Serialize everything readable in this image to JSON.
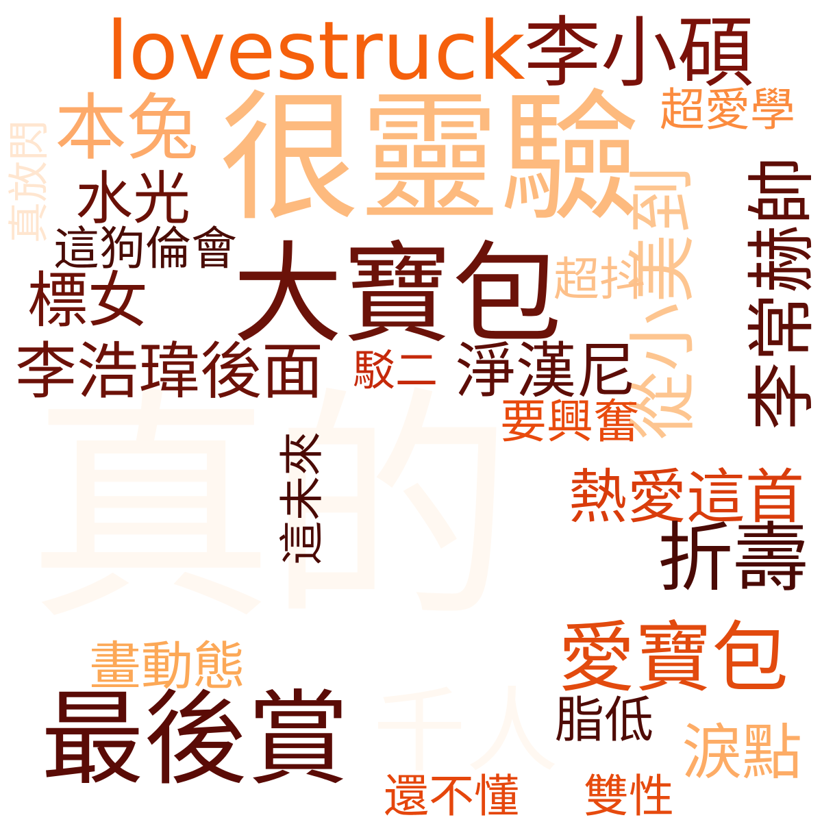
{
  "words": [
    {
      "id": "zhende",
      "text": "真的",
      "color": "#fff8f1"
    },
    {
      "id": "qianren",
      "text": "千人",
      "color": "#fff8f1"
    },
    {
      "id": "henlingyan",
      "text": "很靈驗",
      "color": "#fdba7e"
    },
    {
      "id": "dabaobao",
      "text": "大寶包",
      "color": "#6b1209"
    },
    {
      "id": "lovestruck",
      "text": "lovestruck",
      "color": "#f5600c"
    },
    {
      "id": "lixiaoshuo",
      "text": "李小碩",
      "color": "#7a1109"
    },
    {
      "id": "bentu",
      "text": "本兔",
      "color": "#fdaa6a"
    },
    {
      "id": "chaoaixue",
      "text": "超愛學",
      "color": "#fb8b3e"
    },
    {
      "id": "zhenfangshan",
      "text": "真放閃",
      "color": "#ffe6d0"
    },
    {
      "id": "shuiguang",
      "text": "水光",
      "color": "#6a1007"
    },
    {
      "id": "zhegoulunhui",
      "text": "這狗倫會",
      "color": "#4a0c06"
    },
    {
      "id": "biaonv",
      "text": "標女",
      "color": "#6e1208"
    },
    {
      "id": "chaodou",
      "text": "超抖",
      "color": "#fdc08a"
    },
    {
      "id": "congxiaomeidao",
      "text": "從小美到",
      "color": "#fdc590"
    },
    {
      "id": "lichanghexuai",
      "text": "李常赫帥",
      "color": "#5e0e07"
    },
    {
      "id": "lihaoweihoumian",
      "text": "李浩瑋後面",
      "color": "#6c1108"
    },
    {
      "id": "boer",
      "text": "駁二",
      "color": "#c5290a"
    },
    {
      "id": "jinghanni",
      "text": "淨漢尼",
      "color": "#5d0d07"
    },
    {
      "id": "yaoxingfen",
      "text": "要興奮",
      "color": "#e84a0d"
    },
    {
      "id": "zheweilai",
      "text": "這未來",
      "color": "#4a0a05"
    },
    {
      "id": "reaizheshou",
      "text": "熱愛這首",
      "color": "#d93c0b"
    },
    {
      "id": "zheshou",
      "text": "折壽",
      "color": "#4a0a05"
    },
    {
      "id": "aibaobao",
      "text": "愛寶包",
      "color": "#e24a0e"
    },
    {
      "id": "huadongtai",
      "text": "畫動態",
      "color": "#fca857"
    },
    {
      "id": "zuihoushang",
      "text": "最後賞",
      "color": "#5a0b06"
    },
    {
      "id": "zhidi",
      "text": "脂低",
      "color": "#4f0b06"
    },
    {
      "id": "leidian",
      "text": "淚點",
      "color": "#fdac66"
    },
    {
      "id": "haibudong",
      "text": "還不懂",
      "color": "#e5460c"
    },
    {
      "id": "shuangxing",
      "text": "雙性",
      "color": "#e64a0e"
    }
  ]
}
